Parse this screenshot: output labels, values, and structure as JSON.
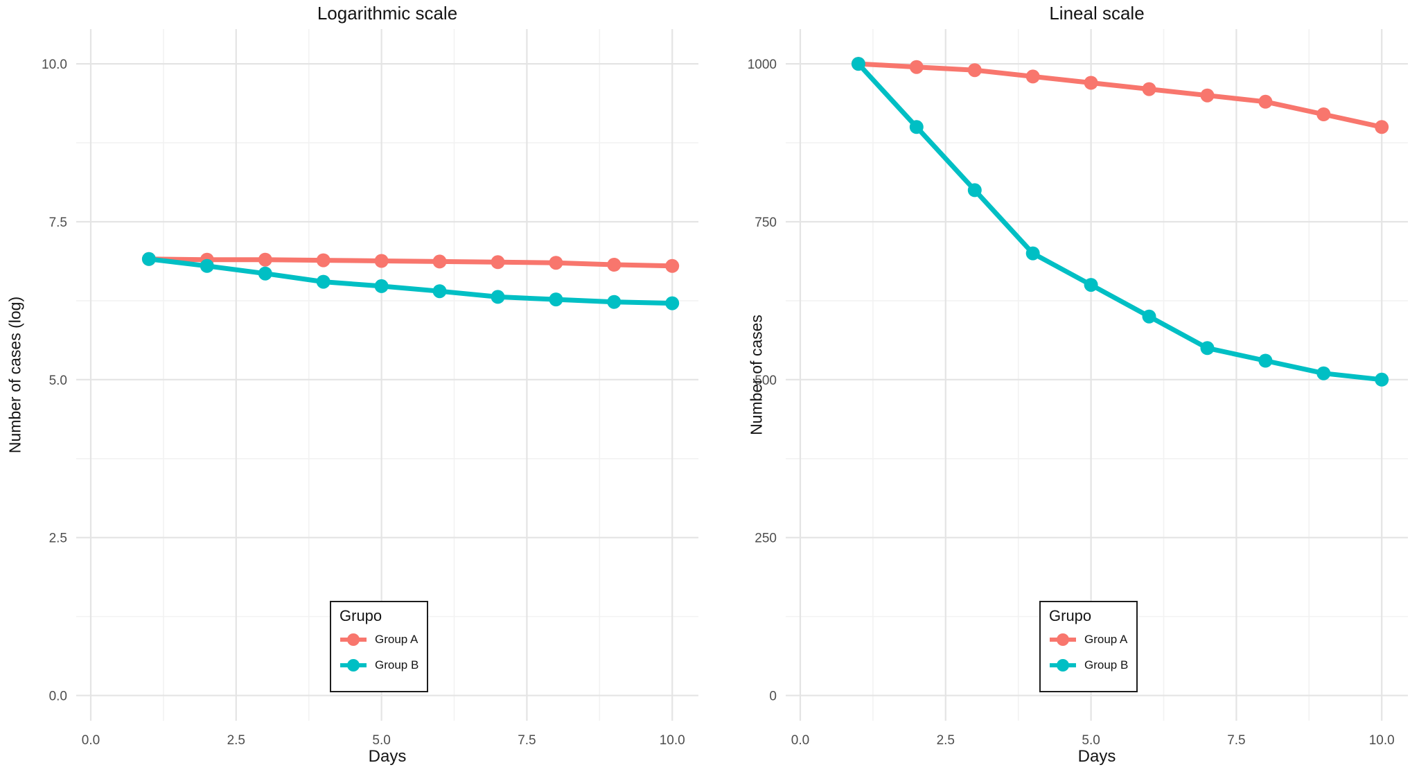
{
  "figure": {
    "background": "#ffffff"
  },
  "chart_data": [
    {
      "type": "line",
      "title": "Logarithmic scale",
      "xlabel": "Days",
      "ylabel": "Number of cases (log)",
      "x": [
        1,
        2,
        3,
        4,
        5,
        6,
        7,
        8,
        9,
        10
      ],
      "series": [
        {
          "name": "Group A",
          "color": "#F8766D",
          "values": [
            6.91,
            6.9,
            6.9,
            6.89,
            6.88,
            6.87,
            6.86,
            6.85,
            6.82,
            6.8
          ]
        },
        {
          "name": "Group B",
          "color": "#00BFC4",
          "values": [
            6.91,
            6.8,
            6.68,
            6.55,
            6.48,
            6.4,
            6.31,
            6.27,
            6.23,
            6.21
          ]
        }
      ],
      "xticks": [
        0,
        2.5,
        5,
        7.5,
        10
      ],
      "xtick_labels": [
        "0.0",
        "2.5",
        "5.0",
        "7.5",
        "10.0"
      ],
      "yticks": [
        0,
        2.5,
        5,
        7.5,
        10
      ],
      "ytick_labels": [
        "0.0",
        "2.5",
        "5.0",
        "7.5",
        "10.0"
      ],
      "xlim": [
        -0.25,
        10.45
      ],
      "ylim": [
        -0.4,
        10.55
      ],
      "grid": true,
      "markers": true,
      "legend": {
        "title": "Grupo",
        "position": "inside-bottom-center"
      }
    },
    {
      "type": "line",
      "title": "Lineal scale",
      "xlabel": "Days",
      "ylabel": "Number of cases",
      "x": [
        1,
        2,
        3,
        4,
        5,
        6,
        7,
        8,
        9,
        10
      ],
      "series": [
        {
          "name": "Group A",
          "color": "#F8766D",
          "values": [
            1000,
            995,
            990,
            980,
            970,
            960,
            950,
            940,
            920,
            900
          ]
        },
        {
          "name": "Group B",
          "color": "#00BFC4",
          "values": [
            1000,
            900,
            800,
            700,
            650,
            600,
            550,
            530,
            510,
            500
          ]
        }
      ],
      "xticks": [
        0,
        2.5,
        5,
        7.5,
        10
      ],
      "xtick_labels": [
        "0.0",
        "2.5",
        "5.0",
        "7.5",
        "10.0"
      ],
      "yticks": [
        0,
        250,
        500,
        750,
        1000
      ],
      "ytick_labels": [
        "0",
        "250",
        "500",
        "750",
        "1000"
      ],
      "xlim": [
        -0.25,
        10.45
      ],
      "ylim": [
        -40,
        1055
      ],
      "grid": true,
      "markers": true,
      "legend": {
        "title": "Grupo",
        "position": "inside-bottom-center"
      }
    }
  ]
}
